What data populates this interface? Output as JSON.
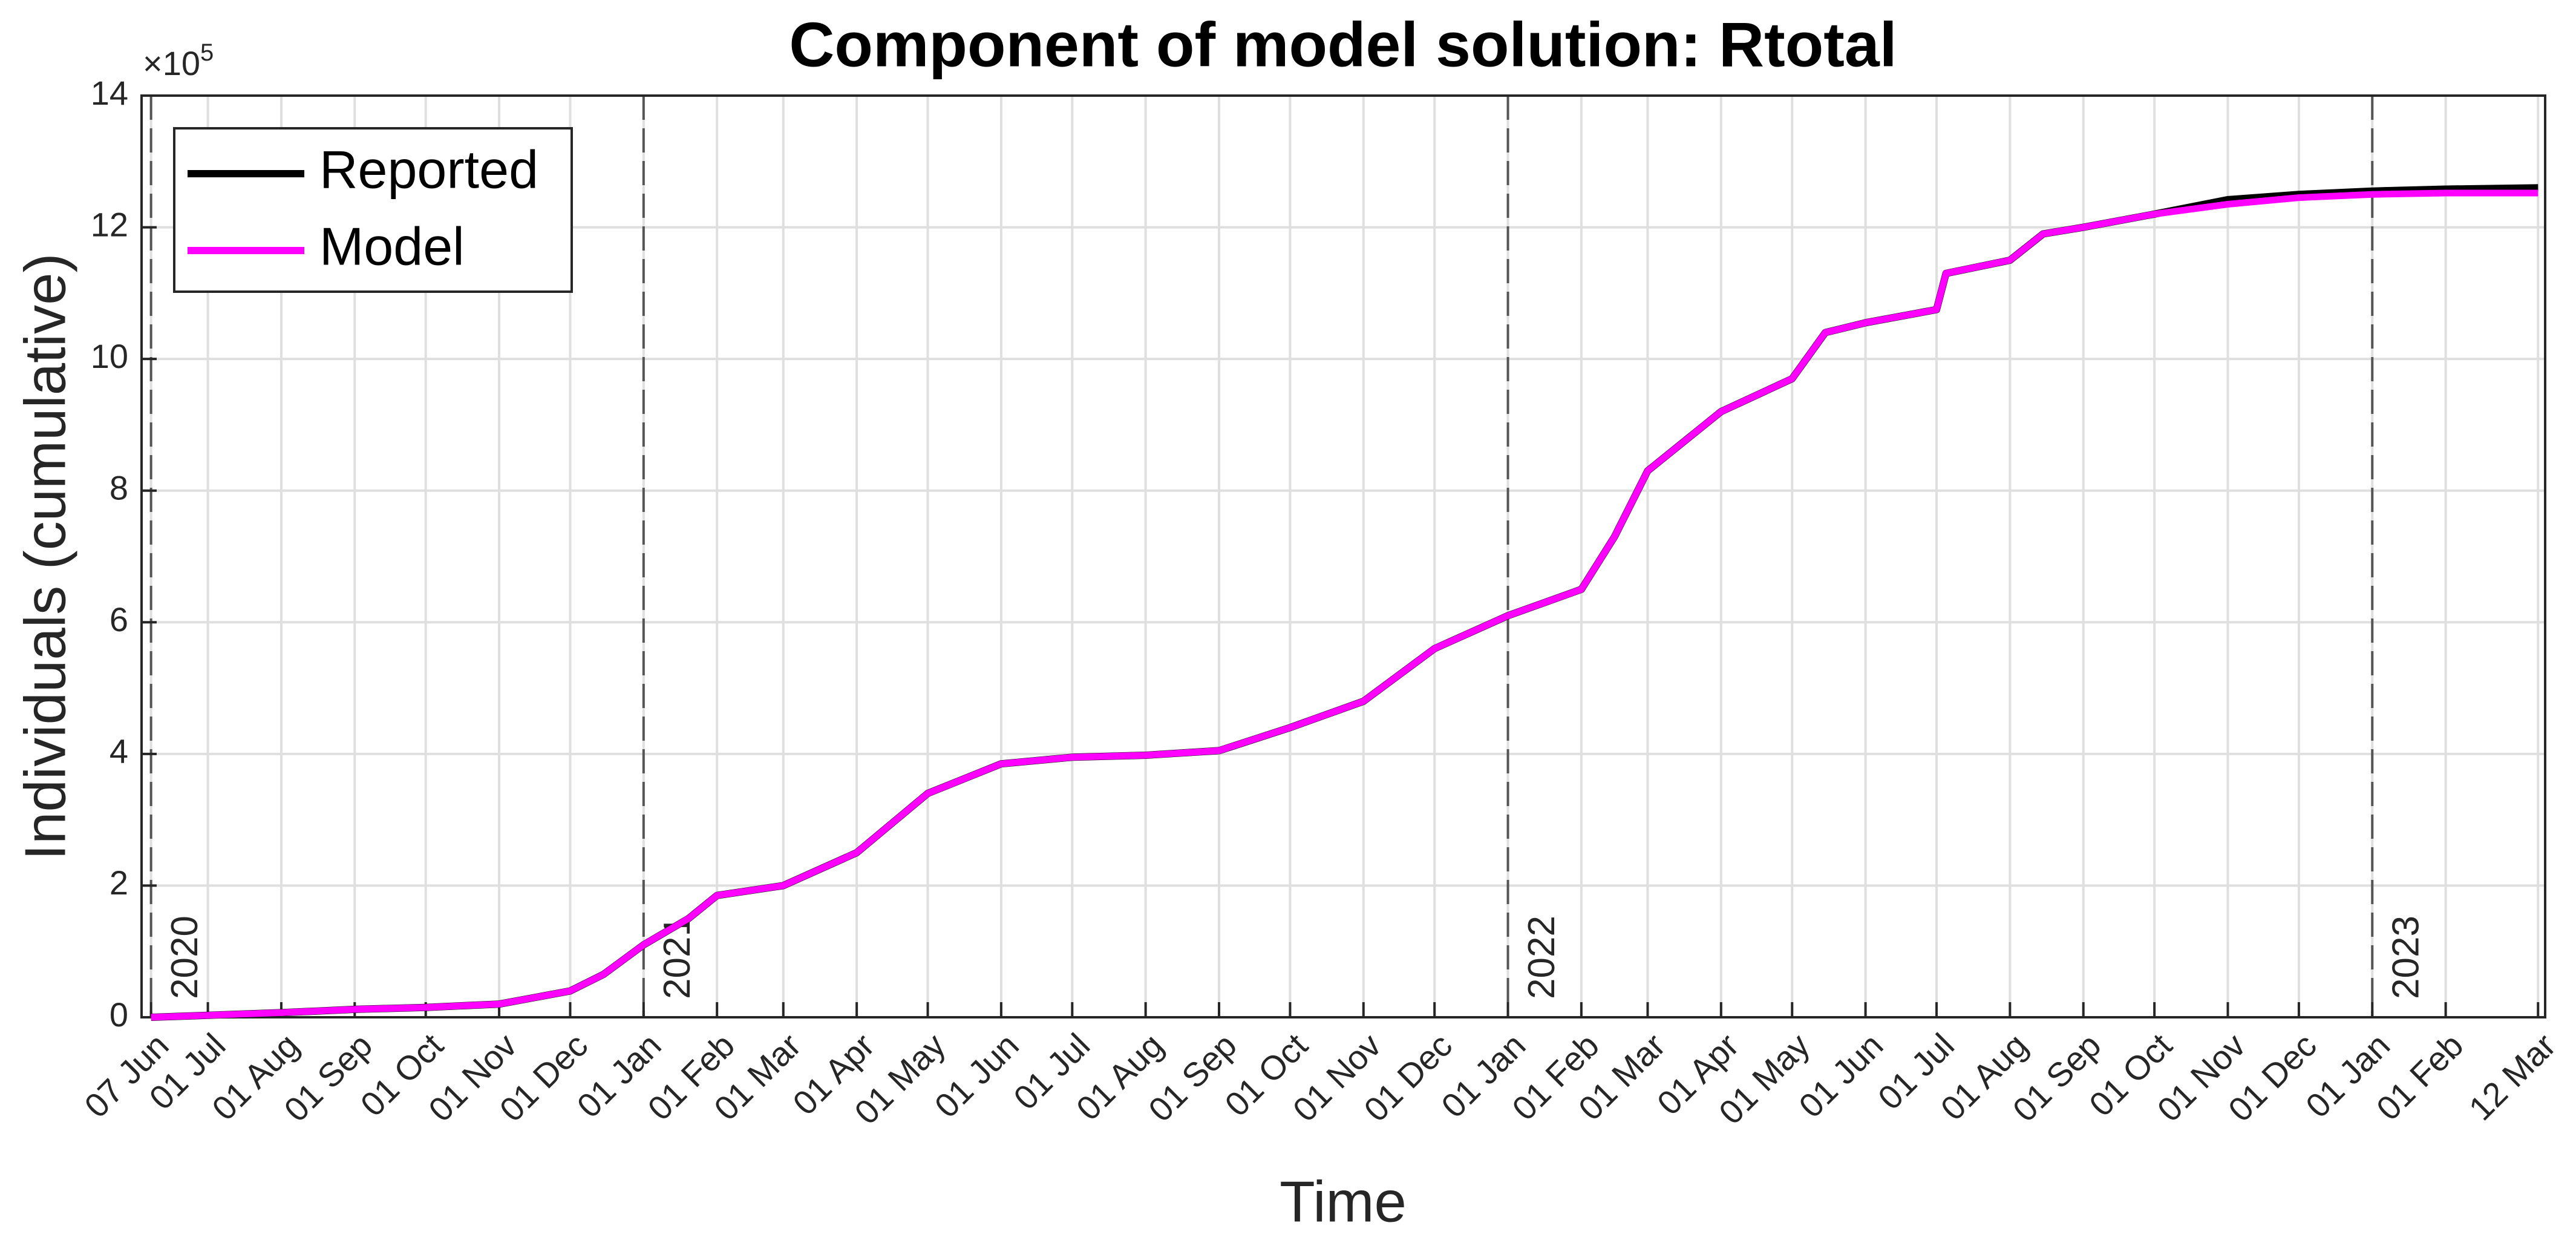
{
  "chart_data": {
    "type": "line",
    "title": "Component of model solution: Rtotal",
    "xlabel": "Time",
    "ylabel": "Individuals (cumulative)",
    "y_multiplier": {
      "base": "×10",
      "power": "5"
    },
    "x": [
      "2020-06-07",
      "2020-07-01",
      "2020-08-01",
      "2020-09-01",
      "2020-10-01",
      "2020-11-01",
      "2020-12-01",
      "2020-12-15",
      "2021-01-01",
      "2021-01-20",
      "2021-02-01",
      "2021-03-01",
      "2021-04-01",
      "2021-05-01",
      "2021-06-01",
      "2021-07-01",
      "2021-08-01",
      "2021-09-01",
      "2021-10-01",
      "2021-11-01",
      "2021-12-01",
      "2022-01-01",
      "2022-02-01",
      "2022-02-15",
      "2022-03-01",
      "2022-04-01",
      "2022-05-01",
      "2022-05-15",
      "2022-06-01",
      "2022-07-01",
      "2022-07-05",
      "2022-08-01",
      "2022-08-15",
      "2022-09-01",
      "2022-10-01",
      "2022-11-01",
      "2022-12-01",
      "2023-01-01",
      "2023-02-01",
      "2023-03-12"
    ],
    "series": [
      {
        "name": "Reported",
        "color": "#000000",
        "values": [
          0,
          3000,
          7000,
          12000,
          15000,
          20000,
          40000,
          65000,
          110000,
          150000,
          185000,
          200000,
          250000,
          340000,
          385000,
          395000,
          398000,
          405000,
          440000,
          480000,
          560000,
          610000,
          650000,
          730000,
          830000,
          920000,
          970000,
          1040000,
          1055000,
          1075000,
          1130000,
          1150000,
          1190000,
          1200000,
          1220000,
          1242000,
          1250000,
          1255000,
          1258000,
          1260000
        ]
      },
      {
        "name": "Model",
        "color": "#ff00ff",
        "values": [
          0,
          3000,
          7000,
          12000,
          15000,
          20000,
          40000,
          65000,
          110000,
          150000,
          185000,
          200000,
          250000,
          340000,
          385000,
          395000,
          398000,
          405000,
          440000,
          480000,
          560000,
          610000,
          650000,
          730000,
          830000,
          920000,
          970000,
          1040000,
          1055000,
          1075000,
          1130000,
          1150000,
          1190000,
          1200000,
          1220000,
          1235000,
          1245000,
          1250000,
          1252000,
          1252000
        ]
      }
    ],
    "xlim": [
      "2020-06-03",
      "2023-03-15"
    ],
    "xticks": [
      {
        "value": "2020-06-07",
        "label": "07 Jun"
      },
      {
        "value": "2020-07-01",
        "label": "01 Jul"
      },
      {
        "value": "2020-08-01",
        "label": "01 Aug"
      },
      {
        "value": "2020-09-01",
        "label": "01 Sep"
      },
      {
        "value": "2020-10-01",
        "label": "01 Oct"
      },
      {
        "value": "2020-11-01",
        "label": "01 Nov"
      },
      {
        "value": "2020-12-01",
        "label": "01 Dec"
      },
      {
        "value": "2021-01-01",
        "label": "01 Jan"
      },
      {
        "value": "2021-02-01",
        "label": "01 Feb"
      },
      {
        "value": "2021-03-01",
        "label": "01 Mar"
      },
      {
        "value": "2021-04-01",
        "label": "01 Apr"
      },
      {
        "value": "2021-05-01",
        "label": "01 May"
      },
      {
        "value": "2021-06-01",
        "label": "01 Jun"
      },
      {
        "value": "2021-07-01",
        "label": "01 Jul"
      },
      {
        "value": "2021-08-01",
        "label": "01 Aug"
      },
      {
        "value": "2021-09-01",
        "label": "01 Sep"
      },
      {
        "value": "2021-10-01",
        "label": "01 Oct"
      },
      {
        "value": "2021-11-01",
        "label": "01 Nov"
      },
      {
        "value": "2021-12-01",
        "label": "01 Dec"
      },
      {
        "value": "2022-01-01",
        "label": "01 Jan"
      },
      {
        "value": "2022-02-01",
        "label": "01 Feb"
      },
      {
        "value": "2022-03-01",
        "label": "01 Mar"
      },
      {
        "value": "2022-04-01",
        "label": "01 Apr"
      },
      {
        "value": "2022-05-01",
        "label": "01 May"
      },
      {
        "value": "2022-06-01",
        "label": "01 Jun"
      },
      {
        "value": "2022-07-01",
        "label": "01 Jul"
      },
      {
        "value": "2022-08-01",
        "label": "01 Aug"
      },
      {
        "value": "2022-09-01",
        "label": "01 Sep"
      },
      {
        "value": "2022-10-01",
        "label": "01 Oct"
      },
      {
        "value": "2022-11-01",
        "label": "01 Nov"
      },
      {
        "value": "2022-12-01",
        "label": "01 Dec"
      },
      {
        "value": "2023-01-01",
        "label": "01 Jan"
      },
      {
        "value": "2023-02-01",
        "label": "01 Feb"
      },
      {
        "value": "2023-03-12",
        "label": "12 Mar"
      }
    ],
    "year_markers": [
      {
        "value": "2020-06-07",
        "label": "2020"
      },
      {
        "value": "2021-01-01",
        "label": "2021"
      },
      {
        "value": "2022-01-01",
        "label": "2022"
      },
      {
        "value": "2023-01-01",
        "label": "2023"
      }
    ],
    "ylim": [
      0,
      1400000
    ],
    "yticks": [
      {
        "value": 0,
        "label": "0"
      },
      {
        "value": 200000,
        "label": "2"
      },
      {
        "value": 400000,
        "label": "4"
      },
      {
        "value": 600000,
        "label": "6"
      },
      {
        "value": 800000,
        "label": "8"
      },
      {
        "value": 1000000,
        "label": "10"
      },
      {
        "value": 1200000,
        "label": "12"
      },
      {
        "value": 1400000,
        "label": "14"
      }
    ],
    "grid": true,
    "legend": "upper left"
  }
}
